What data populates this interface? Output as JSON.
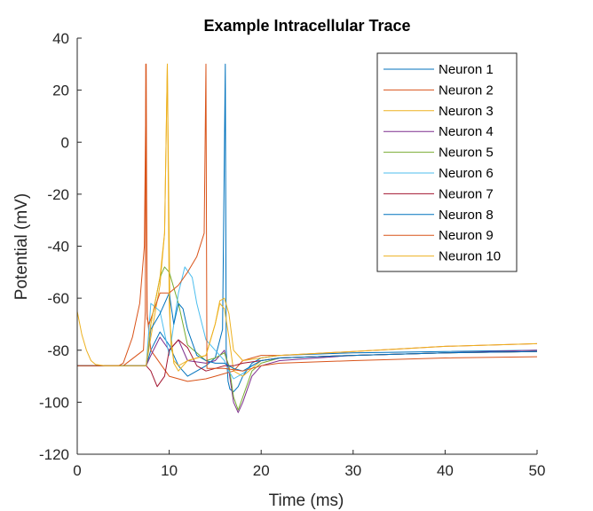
{
  "chart_data": {
    "type": "line",
    "title": "Example Intracellular Trace",
    "xlabel": "Time (ms)",
    "ylabel": "Potential (mV)",
    "xlim": [
      0,
      50
    ],
    "ylim": [
      -120,
      40
    ],
    "xticks": [
      0,
      10,
      20,
      30,
      40,
      50
    ],
    "yticks": [
      -120,
      -100,
      -80,
      -60,
      -40,
      -20,
      0,
      20,
      40
    ],
    "grid": false,
    "legend_position": "top-right",
    "series": [
      {
        "name": "Neuron 1",
        "color": "#0072BD",
        "x": [
          0,
          1,
          2,
          3,
          5,
          7.5,
          8,
          9,
          10,
          11,
          12,
          14,
          15,
          15.8,
          16.1,
          16.2,
          16.4,
          16.6,
          17,
          17.5,
          18,
          19,
          20,
          22,
          30,
          40,
          50
        ],
        "y": [
          -86,
          -86,
          -86,
          -86,
          -86,
          -86,
          -80,
          -73,
          -78,
          -86,
          -90,
          -86,
          -83,
          -72,
          30,
          -80,
          -92,
          -95,
          -96,
          -94,
          -90,
          -85,
          -83,
          -82,
          -81,
          -80.5,
          -80
        ]
      },
      {
        "name": "Neuron 2",
        "color": "#D95319",
        "x": [
          0,
          1,
          2,
          3,
          5,
          7.2,
          7.4,
          7.45,
          7.6,
          8,
          10,
          12,
          14,
          15,
          16,
          17,
          18,
          19,
          20,
          22,
          30,
          40,
          50
        ],
        "y": [
          -86,
          -86,
          -86,
          -86,
          -86,
          -80,
          -65,
          30,
          -66,
          -80,
          -90,
          -92,
          -91,
          -90,
          -89,
          -88,
          -84,
          -83,
          -82,
          -82,
          -80.5,
          -78.5,
          -77.5
        ]
      },
      {
        "name": "Neuron 3",
        "color": "#EDB120",
        "x": [
          0,
          1,
          2,
          3,
          5,
          7.5,
          8,
          9,
          9.5,
          9.8,
          10.1,
          10.5,
          11,
          12,
          14,
          15,
          15.5,
          16,
          16.5,
          17,
          18,
          19,
          20,
          22,
          30,
          40,
          50
        ],
        "y": [
          -86,
          -86,
          -86,
          -86,
          -86,
          -86,
          -75,
          -55,
          -35,
          30,
          -70,
          -85,
          -88,
          -84,
          -82,
          -70,
          -62,
          -64,
          -75,
          -88,
          -90,
          -87,
          -84,
          -83,
          -82,
          -81,
          -80.5
        ]
      },
      {
        "name": "Neuron 4",
        "color": "#7E2F8E",
        "x": [
          0,
          1,
          2,
          3,
          5,
          7.5,
          8,
          9,
          10,
          11,
          12,
          14,
          15,
          16,
          16.5,
          17,
          17.5,
          18,
          19,
          20,
          22,
          30,
          40,
          50
        ],
        "y": [
          -86,
          -86,
          -86,
          -86,
          -86,
          -86,
          -82,
          -75,
          -80,
          -76,
          -84,
          -85,
          -84,
          -80,
          -88,
          -100,
          -104,
          -100,
          -90,
          -86,
          -84,
          -82,
          -81,
          -80
        ]
      },
      {
        "name": "Neuron 5",
        "color": "#77AC30",
        "x": [
          0,
          1,
          2,
          3,
          5,
          7.5,
          8,
          9,
          9.5,
          10,
          11,
          12,
          14,
          15,
          16,
          16.5,
          17,
          17.5,
          18,
          19,
          20,
          22,
          30,
          40,
          50
        ],
        "y": [
          -86,
          -86,
          -86,
          -86,
          -86,
          -86,
          -70,
          -52,
          -48,
          -50,
          -62,
          -78,
          -84,
          -83,
          -81,
          -86,
          -98,
          -103,
          -98,
          -88,
          -85,
          -83,
          -82,
          -81,
          -80.5
        ]
      },
      {
        "name": "Neuron 6",
        "color": "#4DBEEE",
        "x": [
          0,
          1,
          2,
          3,
          5,
          7.5,
          8,
          9,
          10,
          10.5,
          11,
          11.7,
          12.5,
          13,
          14,
          15,
          16,
          16.5,
          17,
          18,
          19,
          20,
          22,
          30,
          40,
          50
        ],
        "y": [
          -86,
          -86,
          -86,
          -86,
          -86,
          -86,
          -62,
          -65,
          -82,
          -70,
          -58,
          -48,
          -52,
          -62,
          -76,
          -80,
          -84,
          -88,
          -91,
          -89,
          -86,
          -84,
          -83,
          -82,
          -81,
          -80.5
        ]
      },
      {
        "name": "Neuron 7",
        "color": "#A2142F",
        "x": [
          0,
          1,
          2,
          3,
          5,
          7.5,
          8,
          8.7,
          9.5,
          10,
          11,
          12,
          13,
          14,
          15,
          16,
          17,
          18,
          20,
          22,
          30,
          40,
          50
        ],
        "y": [
          -86,
          -86,
          -86,
          -86,
          -86,
          -86,
          -88,
          -94,
          -90,
          -80,
          -76,
          -79,
          -86,
          -88,
          -87,
          -86,
          -86,
          -85,
          -84,
          -83,
          -82,
          -81,
          -80.5
        ]
      },
      {
        "name": "Neuron 8",
        "color": "#0072BD",
        "x": [
          0,
          1,
          2,
          3,
          5,
          7.5,
          8,
          9,
          10,
          10.5,
          11,
          11.5,
          12,
          13,
          14,
          15,
          16,
          17,
          18,
          19,
          20,
          22,
          30,
          40,
          50
        ],
        "y": [
          -86,
          -86,
          -86,
          -86,
          -86,
          -86,
          -72,
          -66,
          -58,
          -70,
          -62,
          -64,
          -72,
          -82,
          -84,
          -85,
          -85,
          -87,
          -88,
          -86,
          -84,
          -83,
          -82,
          -81,
          -80.5
        ]
      },
      {
        "name": "Neuron 9",
        "color": "#D95319",
        "x": [
          0,
          1,
          2,
          3,
          4.5,
          5,
          6,
          6.8,
          7.3,
          7.5,
          7.6,
          7.8,
          8,
          9,
          10,
          11,
          12,
          13,
          13.8,
          14,
          14.1,
          14.3,
          15,
          16,
          17,
          18,
          20,
          22,
          30,
          40,
          50
        ],
        "y": [
          -86,
          -86,
          -86,
          -86,
          -86,
          -85,
          -75,
          -62,
          -40,
          30,
          -68,
          -70,
          -68,
          -58,
          -58,
          -55,
          -50,
          -44,
          -35,
          30,
          -87,
          -87,
          -87,
          -87,
          -87.5,
          -88,
          -86,
          -85,
          -84,
          -83,
          -82.5
        ]
      },
      {
        "name": "Neuron 10",
        "color": "#EDB120",
        "x": [
          0,
          0.5,
          1,
          1.5,
          2,
          3,
          5,
          7.5,
          8,
          9,
          9.5,
          9.8,
          10,
          10.2,
          10.5,
          11,
          12,
          14,
          15,
          15.5,
          16,
          16.5,
          17,
          18,
          20,
          22,
          30,
          40,
          50
        ],
        "y": [
          -65,
          -74,
          -80,
          -84,
          -85.5,
          -86,
          -86,
          -86,
          -70,
          -52,
          -35,
          30,
          -62,
          -78,
          -84,
          -86,
          -84,
          -82,
          -70,
          -61,
          -60,
          -66,
          -80,
          -84,
          -83,
          -82,
          -80.5,
          -78.5,
          -77.5
        ]
      }
    ]
  }
}
